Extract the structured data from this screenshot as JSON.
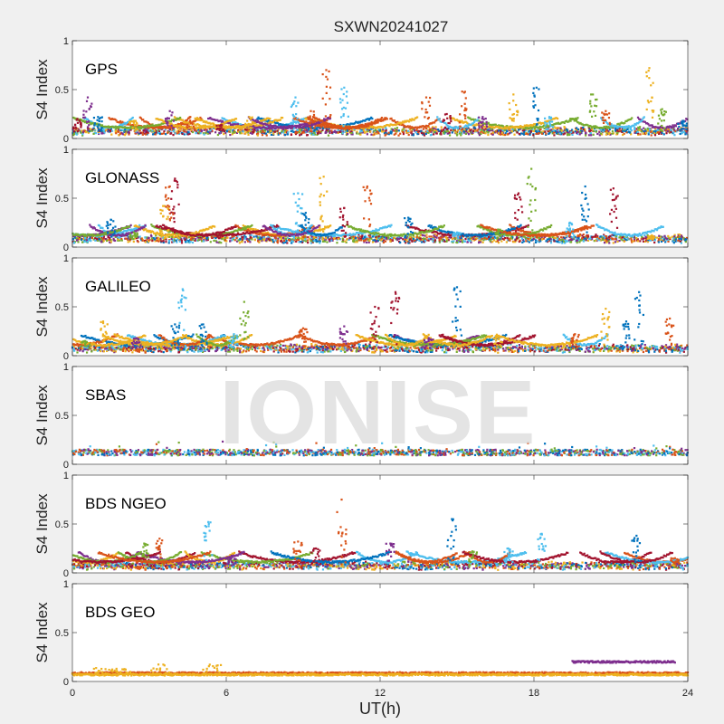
{
  "figure": {
    "title": "SXWN20241027",
    "watermark": "IONISE"
  },
  "chart_data": {
    "type": "scatter",
    "title": "SXWN20241027",
    "xlabel": "UT(h)",
    "ylabel": "S4 Index",
    "xlim": [
      0,
      24
    ],
    "ylim": [
      0,
      1
    ],
    "xticks": [
      0,
      6,
      12,
      18,
      24
    ],
    "yticks": [
      0,
      0.5,
      1
    ],
    "ytick_labels": [
      "0",
      "0.5",
      "1"
    ],
    "grid": false,
    "colors": [
      "#0072BD",
      "#D95319",
      "#EDB120",
      "#7E2F8E",
      "#77AC30",
      "#4DBEEE",
      "#A2142F"
    ],
    "panels": [
      {
        "label": "GPS",
        "base": 0.07,
        "spikes": [
          [
            0.6,
            0.42,
            3
          ],
          [
            0.2,
            0.2,
            6
          ],
          [
            1.0,
            0.22,
            0
          ],
          [
            2.4,
            0.18,
            2
          ],
          [
            3.8,
            0.28,
            3
          ],
          [
            4.6,
            0.22,
            1
          ],
          [
            5.8,
            0.14,
            6
          ],
          [
            6.9,
            0.22,
            2
          ],
          [
            8.7,
            0.42,
            5
          ],
          [
            9.3,
            0.28,
            1
          ],
          [
            9.9,
            0.7,
            1
          ],
          [
            10.6,
            0.52,
            5
          ],
          [
            13.8,
            0.42,
            1
          ],
          [
            14.6,
            0.25,
            6
          ],
          [
            15.2,
            0.48,
            1
          ],
          [
            16.0,
            0.22,
            3
          ],
          [
            17.2,
            0.45,
            2
          ],
          [
            18.1,
            0.52,
            0
          ],
          [
            18.6,
            0.22,
            5
          ],
          [
            20.3,
            0.45,
            4
          ],
          [
            20.8,
            0.28,
            1
          ],
          [
            22.5,
            0.72,
            2
          ],
          [
            23.0,
            0.3,
            4
          ],
          [
            23.8,
            0.18,
            0
          ]
        ]
      },
      {
        "label": "GLONASS",
        "base": 0.08,
        "spikes": [
          [
            1.5,
            0.28,
            0
          ],
          [
            2.4,
            0.15,
            4
          ],
          [
            3.6,
            0.42,
            2
          ],
          [
            3.8,
            0.62,
            1
          ],
          [
            4.0,
            0.7,
            6
          ],
          [
            8.8,
            0.55,
            5
          ],
          [
            9.1,
            0.35,
            0
          ],
          [
            9.8,
            0.72,
            2
          ],
          [
            10.6,
            0.4,
            6
          ],
          [
            11.5,
            0.62,
            1
          ],
          [
            13.1,
            0.3,
            0
          ],
          [
            15.0,
            0.15,
            5
          ],
          [
            16.6,
            0.18,
            4
          ],
          [
            17.4,
            0.55,
            6
          ],
          [
            17.9,
            0.8,
            4
          ],
          [
            20.0,
            0.62,
            0
          ],
          [
            19.4,
            0.25,
            5
          ],
          [
            21.1,
            0.6,
            6
          ],
          [
            22.6,
            0.12,
            2
          ]
        ]
      },
      {
        "label": "GALILEO",
        "base": 0.07,
        "spikes": [
          [
            1.2,
            0.35,
            2
          ],
          [
            0.5,
            0.15,
            4
          ],
          [
            2.5,
            0.18,
            3
          ],
          [
            4.3,
            0.68,
            5
          ],
          [
            4.0,
            0.32,
            0
          ],
          [
            5.1,
            0.32,
            0
          ],
          [
            6.7,
            0.55,
            4
          ],
          [
            6.3,
            0.22,
            5
          ],
          [
            9.0,
            0.28,
            1
          ],
          [
            10.6,
            0.3,
            3
          ],
          [
            11.8,
            0.5,
            6
          ],
          [
            12.6,
            0.65,
            6
          ],
          [
            13.9,
            0.18,
            3
          ],
          [
            15.0,
            0.7,
            0
          ],
          [
            16.6,
            0.2,
            2
          ],
          [
            19.6,
            0.22,
            1
          ],
          [
            20.8,
            0.48,
            2
          ],
          [
            21.6,
            0.35,
            0
          ],
          [
            22.1,
            0.65,
            0
          ],
          [
            23.3,
            0.38,
            1
          ]
        ]
      },
      {
        "label": "SBAS",
        "base": 0.12,
        "spikes": []
      },
      {
        "label": "BDS NGEO",
        "base": 0.07,
        "spikes": [
          [
            2.8,
            0.3,
            4
          ],
          [
            3.4,
            0.35,
            1
          ],
          [
            5.3,
            0.52,
            5
          ],
          [
            6.2,
            0.15,
            3
          ],
          [
            8.8,
            0.32,
            1
          ],
          [
            9.5,
            0.25,
            6
          ],
          [
            10.5,
            0.75,
            1
          ],
          [
            12.4,
            0.3,
            3
          ],
          [
            14.8,
            0.55,
            0
          ],
          [
            15.6,
            0.22,
            4
          ],
          [
            17.0,
            0.25,
            5
          ],
          [
            18.3,
            0.4,
            5
          ],
          [
            22.0,
            0.38,
            0
          ],
          [
            23.5,
            0.15,
            1
          ]
        ]
      },
      {
        "label": "BDS GEO",
        "base": 0.08,
        "spikes": [],
        "segments": [
          {
            "x": [
              0,
              24
            ],
            "y": 0.085,
            "color_index": 1
          },
          {
            "x": [
              0,
              24
            ],
            "y": 0.07,
            "color_index": 2
          },
          {
            "x": [
              19.5,
              23.5
            ],
            "y": 0.2,
            "color_index": 3
          }
        ],
        "bursts": [
          [
            1.2,
            0.15,
            2
          ],
          [
            2.0,
            0.14,
            2
          ],
          [
            3.4,
            0.18,
            2
          ],
          [
            5.4,
            0.19,
            2
          ]
        ]
      }
    ]
  }
}
